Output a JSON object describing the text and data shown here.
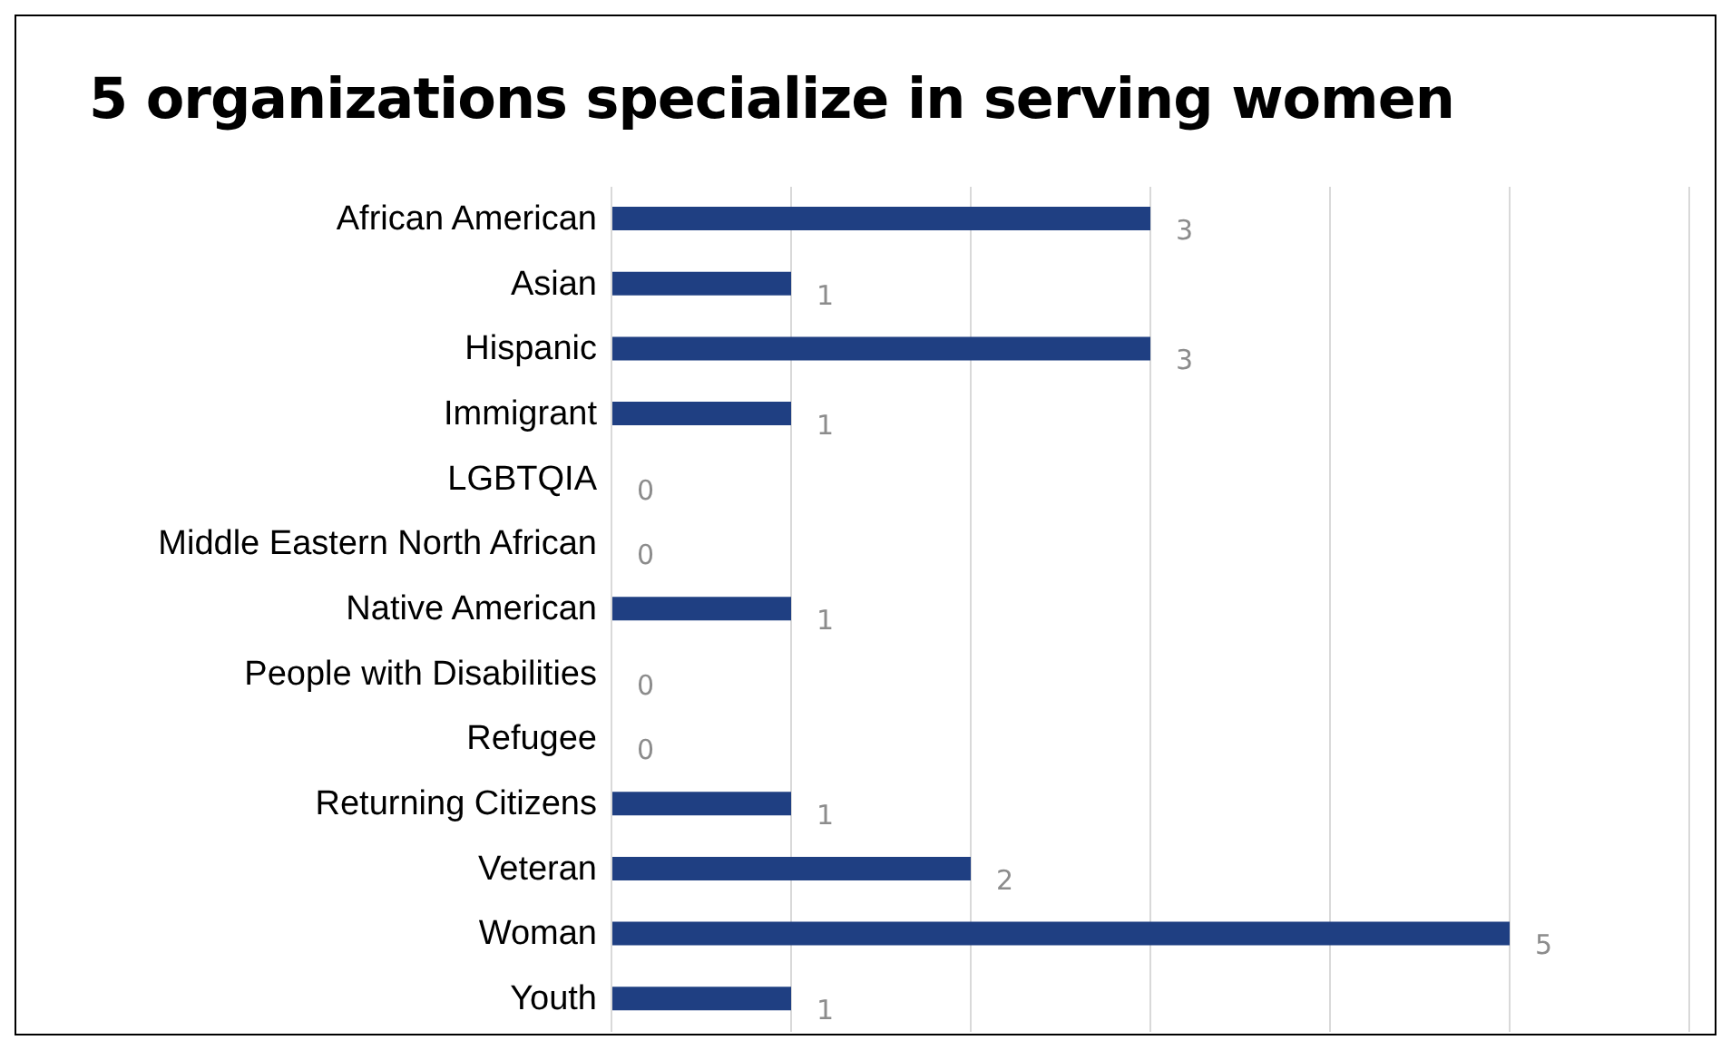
{
  "chart_data": {
    "type": "bar",
    "orientation": "horizontal",
    "title": "5 organizations specialize in serving women",
    "categories": [
      "African American",
      "Asian",
      "Hispanic",
      "Immigrant",
      "LGBTQIA",
      "Middle Eastern North African",
      "Native American",
      "People with Disabilities",
      "Refugee",
      "Returning Citizens",
      "Veteran",
      "Woman",
      "Youth"
    ],
    "values": [
      3,
      1,
      3,
      1,
      0,
      0,
      1,
      0,
      0,
      1,
      2,
      5,
      1
    ],
    "color": "#1f3f82",
    "xlim": [
      0,
      6
    ],
    "xticks": [
      0,
      1,
      2,
      3,
      4,
      5,
      6
    ],
    "tick_labels": "y",
    "grid": "x",
    "data_labels": true
  }
}
